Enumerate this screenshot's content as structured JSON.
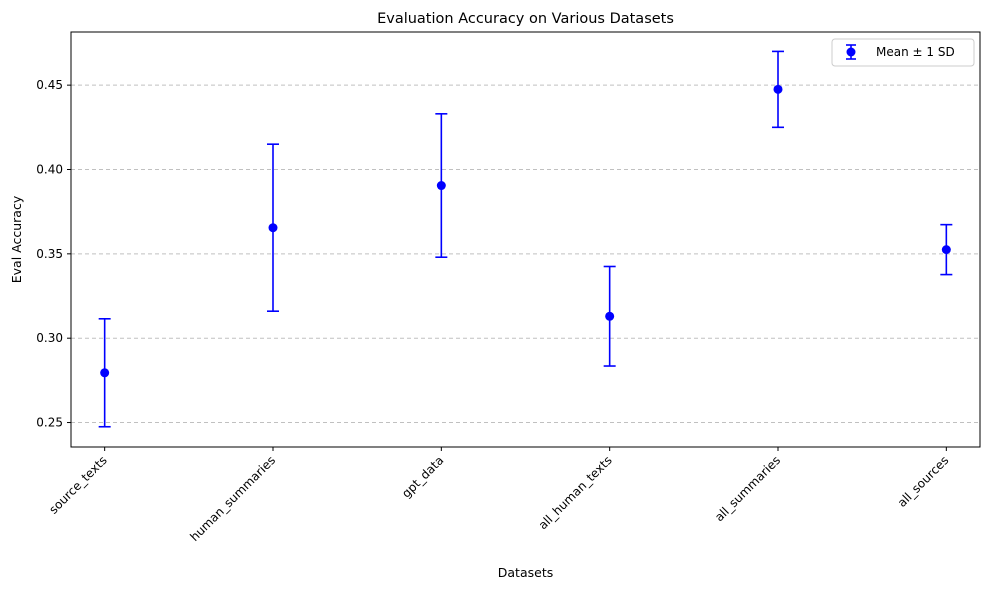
{
  "chart_data": {
    "type": "errorbar",
    "title": "Evaluation Accuracy on Various Datasets",
    "xlabel": "Datasets",
    "ylabel": "Eval Accuracy",
    "categories": [
      "source_texts",
      "human_summaries",
      "gpt_data",
      "all_human_texts",
      "all_summaries",
      "all_sources"
    ],
    "series": [
      {
        "name": "Mean ± 1 SD",
        "color": "#0000ff",
        "mean": [
          0.2795,
          0.3655,
          0.3905,
          0.313,
          0.4475,
          0.3525
        ],
        "sd": [
          0.032,
          0.0495,
          0.0425,
          0.0295,
          0.0225,
          0.0148
        ]
      }
    ],
    "ylim": [
      0.2355,
      0.4815
    ],
    "yticks": [
      0.25,
      0.3,
      0.35,
      0.4,
      0.45
    ],
    "ytick_labels": [
      "0.25",
      "0.30",
      "0.35",
      "0.40",
      "0.45"
    ],
    "grid": {
      "axis": "y",
      "style": "dashed",
      "color": "#c0c0c0"
    },
    "legend": {
      "placement": "top-right"
    },
    "xtick_rotation": 45
  }
}
